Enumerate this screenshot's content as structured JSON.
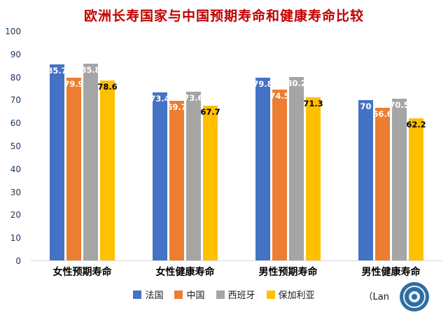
{
  "title": "欧洲长寿国家与中国预期寿命和健康寿命比较",
  "chart_data": {
    "type": "bar",
    "title": "欧洲长寿国家与中国预期寿命和健康寿命比较",
    "categories": [
      "女性预期寿命",
      "女性健康寿命",
      "男性预期寿命",
      "男性健康寿命"
    ],
    "series": [
      {
        "name": "法国",
        "color": "#4472C4",
        "label_color": "#FFFFFF",
        "values": [
          85.7,
          73.4,
          79.8,
          70
        ]
      },
      {
        "name": "中国",
        "color": "#ED7D31",
        "label_color": "#FFFFFF",
        "values": [
          79.9,
          69.7,
          74.5,
          66.6
        ]
      },
      {
        "name": "西班牙",
        "color": "#A5A5A5",
        "label_color": "#FFFFFF",
        "values": [
          85.8,
          73.6,
          80.2,
          70.5
        ]
      },
      {
        "name": "保加利亚",
        "color": "#FFC000",
        "label_color": "#000000",
        "values": [
          78.6,
          67.7,
          71.3,
          62.2
        ]
      }
    ],
    "xlabel": "",
    "ylabel": "",
    "ylim": [
      0,
      100
    ],
    "yticks": [
      0,
      10,
      20,
      30,
      40,
      50,
      60,
      70,
      80,
      90,
      100
    ],
    "grid": false,
    "legend_position": "bottom",
    "title_color": "#C00000",
    "ytick_color": "#17375E"
  },
  "footer": {
    "source_text": "（Lan",
    "watermark": "blue-circle-logo"
  }
}
